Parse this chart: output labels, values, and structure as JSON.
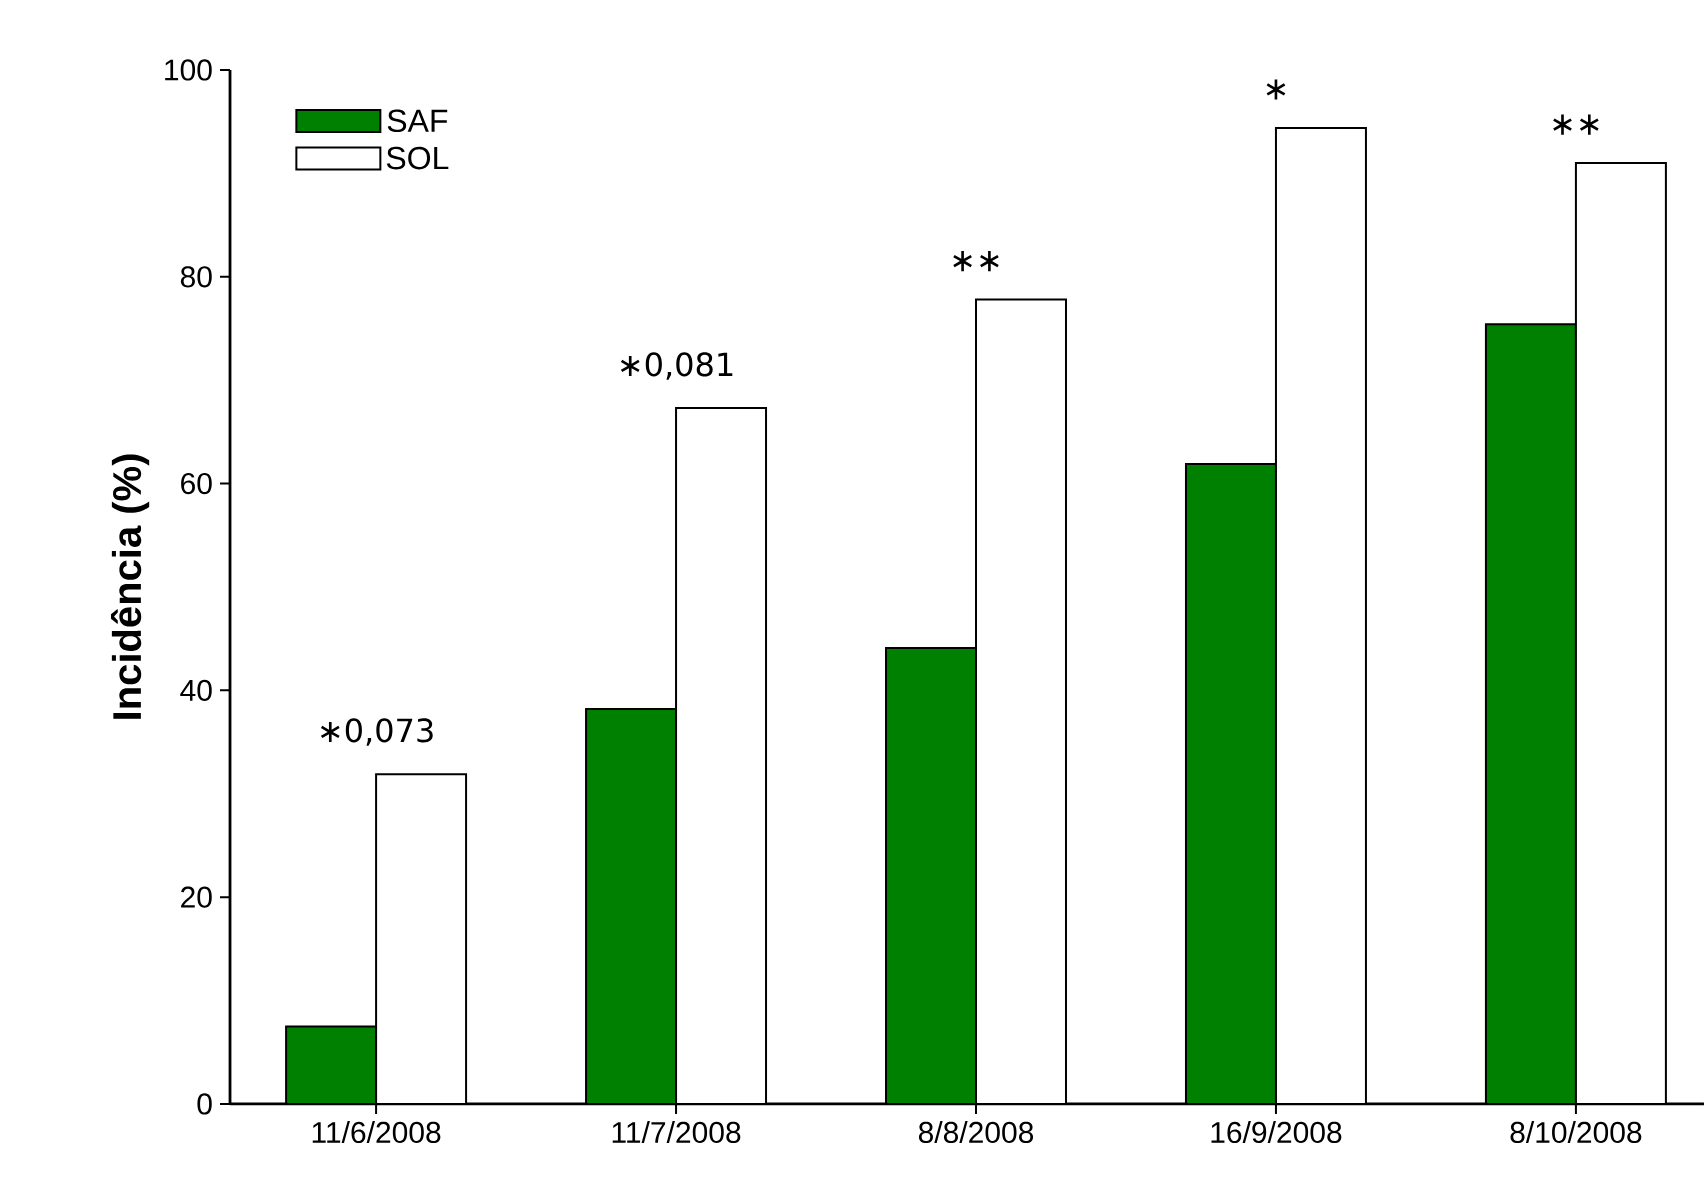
{
  "chart_data": {
    "type": "bar",
    "ylabel": "Incidência (%)",
    "categories": [
      "11/6/2008",
      "11/7/2008",
      "8/8/2008",
      "16/9/2008",
      "8/10/2008"
    ],
    "series": [
      {
        "name": "SAF",
        "color": "#008000",
        "values": [
          7.5,
          38.2,
          44.1,
          61.9,
          75.4
        ]
      },
      {
        "name": "SOL",
        "color": "#ffffff",
        "values": [
          31.9,
          67.3,
          77.8,
          94.4,
          91.0
        ]
      }
    ],
    "ylim": [
      0,
      100
    ],
    "yticks": [
      0,
      20,
      40,
      60,
      80,
      100
    ],
    "grid": false,
    "legend": "top left",
    "annotations": [
      {
        "text": "∗0,073",
        "x": "11/6/2008",
        "y": 31.9
      },
      {
        "text": "∗0,081",
        "x": "11/7/2008",
        "y": 67.3
      },
      {
        "text": "∗∗",
        "x": "8/8/2008",
        "y": 77.8
      },
      {
        "text": "∗",
        "x": "16/9/2008",
        "y": 94.4
      },
      {
        "text": "∗∗",
        "x": "8/10/2008",
        "y": 91.0
      }
    ]
  }
}
